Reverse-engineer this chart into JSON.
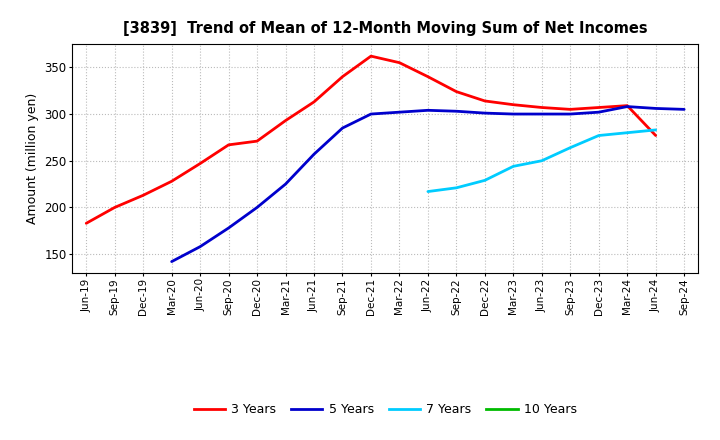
{
  "title": "[3839]  Trend of Mean of 12-Month Moving Sum of Net Incomes",
  "ylabel": "Amount (million yen)",
  "ylim": [
    130,
    375
  ],
  "yticks": [
    150,
    200,
    250,
    300,
    350
  ],
  "background_color": "#ffffff",
  "grid_color": "#bbbbbb",
  "xtick_labels": [
    "Jun-19",
    "Sep-19",
    "Dec-19",
    "Mar-20",
    "Jun-20",
    "Sep-20",
    "Dec-20",
    "Mar-21",
    "Jun-21",
    "Sep-21",
    "Dec-21",
    "Mar-22",
    "Jun-22",
    "Sep-22",
    "Dec-22",
    "Mar-23",
    "Jun-23",
    "Sep-23",
    "Dec-23",
    "Mar-24",
    "Jun-24",
    "Sep-24"
  ],
  "legend_labels": [
    "3 Years",
    "5 Years",
    "7 Years",
    "10 Years"
  ],
  "legend_colors": [
    "#ff0000",
    "#0000cc",
    "#00ccff",
    "#00bb00"
  ],
  "series_3yr_x": [
    0,
    1,
    2,
    3,
    4,
    5,
    6,
    7,
    8,
    9,
    10,
    11,
    12,
    13,
    14,
    15,
    16,
    17,
    18,
    19,
    20
  ],
  "series_3yr_y": [
    183,
    200,
    213,
    228,
    247,
    267,
    271,
    293,
    313,
    340,
    362,
    355,
    340,
    324,
    314,
    310,
    307,
    305,
    307,
    309,
    277
  ],
  "series_5yr_x": [
    3,
    4,
    5,
    6,
    7,
    8,
    9,
    10,
    11,
    12,
    13,
    14,
    15,
    16,
    17,
    18,
    19,
    20,
    21
  ],
  "series_5yr_y": [
    142,
    158,
    178,
    200,
    225,
    257,
    285,
    300,
    302,
    304,
    303,
    301,
    300,
    300,
    300,
    302,
    308,
    306,
    305
  ],
  "series_7yr_x": [
    12,
    13,
    14,
    15,
    16,
    17,
    18,
    20
  ],
  "series_7yr_y": [
    217,
    221,
    229,
    244,
    250,
    264,
    277,
    283
  ],
  "series_10yr_x": [
    20
  ],
  "series_10yr_y": [
    284
  ]
}
